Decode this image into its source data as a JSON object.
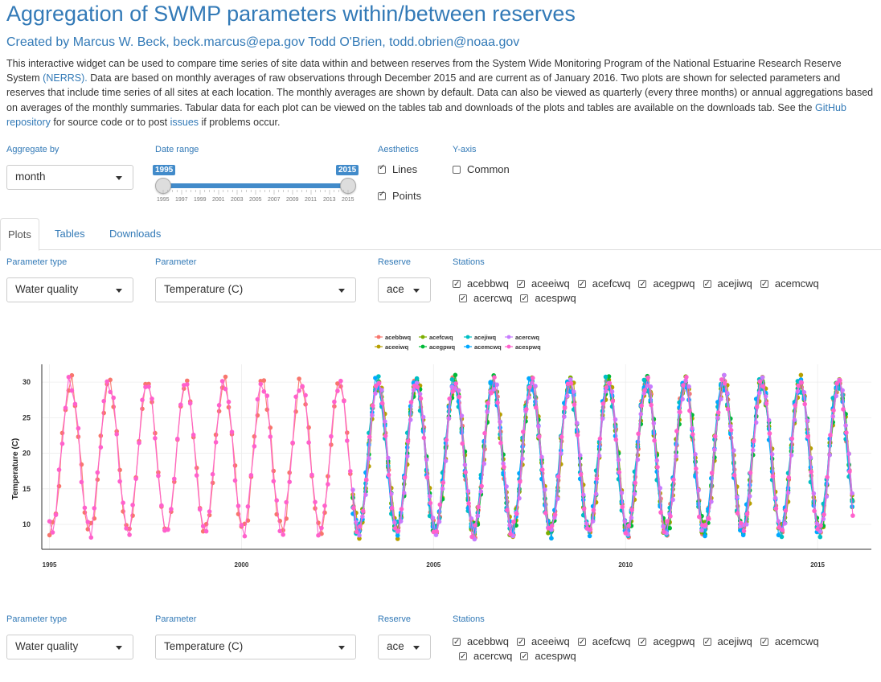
{
  "header": {
    "title": "Aggregation of SWMP parameters within/between reserves",
    "created_by": "Created by Marcus W. Beck,",
    "email1": "beck.marcus@epa.gov",
    "author2": "Todd O'Brien,",
    "email2": "todd.obrien@noaa.gov"
  },
  "intro": {
    "p1": "This interactive widget can be used to compare time series of site data within and between reserves from the System Wide Monitoring Program of the National Estuarine Research Reserve System",
    "nerrs_link": "(NERRS).",
    "p2": "Data are based on monthly averages of raw observations through December 2015 and are current as of January 2016. Two plots are shown for selected parameters and reserves that include time series of all sites at each location. The monthly averages are shown by default. Data can also be viewed as quarterly (every three months) or annual aggregations based on averages of the monthly summaries. Tabular data for each plot can be viewed on the tables tab and downloads of the plots and tables are available on the downloads tab. See the",
    "github_link": "GitHub repository",
    "p3": "for source code or to post",
    "issues_link": "issues",
    "p4": "if problems occur."
  },
  "controls": {
    "aggregate_label": "Aggregate by",
    "aggregate_value": "month",
    "date_label": "Date range",
    "date_start": "1995",
    "date_end": "2015",
    "slider_ticks": [
      "1995",
      "1997",
      "1999",
      "2001",
      "2003",
      "2005",
      "2007",
      "2009",
      "2011",
      "2013",
      "2015"
    ],
    "aesthetics_label": "Aesthetics",
    "lines_label": "Lines",
    "points_label": "Points",
    "yaxis_label": "Y-axis",
    "common_label": "Common"
  },
  "tabs": [
    {
      "label": "Plots"
    },
    {
      "label": "Tables"
    },
    {
      "label": "Downloads"
    }
  ],
  "panel1": {
    "param_type_label": "Parameter type",
    "param_type_value": "Water quality",
    "param_label": "Parameter",
    "param_value": "Temperature (C)",
    "reserve_label": "Reserve",
    "reserve_value": "ace",
    "stations_label": "Stations",
    "stations": [
      "acebbwq",
      "aceeiwq",
      "acefcwq",
      "acegpwq",
      "acejiwq",
      "acemcwq",
      "acercwq",
      "acespwq"
    ]
  },
  "panel2": {
    "param_type_label": "Parameter type",
    "param_type_value": "Water quality",
    "param_label": "Parameter",
    "param_value": "Temperature (C)",
    "reserve_label": "Reserve",
    "reserve_value": "ace",
    "stations_label": "Stations",
    "stations": [
      "acebbwq",
      "aceeiwq",
      "acefcwq",
      "acegpwq",
      "acejiwq",
      "acemcwq",
      "acercwq",
      "acespwq"
    ]
  },
  "chart_data": {
    "type": "line",
    "title": "",
    "xlabel": "",
    "ylabel": "Temperature (C)",
    "xlim": [
      1994.8,
      2016.4
    ],
    "ylim": [
      6.5,
      32.5
    ],
    "x_ticks": [
      1995,
      2000,
      2005,
      2010,
      2015
    ],
    "y_ticks": [
      10,
      15,
      20,
      25,
      30
    ],
    "legend_position": "top",
    "series": [
      {
        "name": "acebbwq",
        "color": "#f8766d",
        "start": 1995.0,
        "end": 2015.95,
        "phase": 0.0
      },
      {
        "name": "aceeiwq",
        "color": "#b79f00",
        "start": 2002.9,
        "end": 2015.95,
        "phase": -0.02
      },
      {
        "name": "acefcwq",
        "color": "#7cae00",
        "start": 2002.9,
        "end": 2015.95,
        "phase": 0.01
      },
      {
        "name": "acegpwq",
        "color": "#00ba38",
        "start": 2002.9,
        "end": 2015.95,
        "phase": -0.01
      },
      {
        "name": "acejiwq",
        "color": "#00bfc4",
        "start": 2002.9,
        "end": 2015.95,
        "phase": 0.02
      },
      {
        "name": "acemcwq",
        "color": "#00a9ff",
        "start": 2002.9,
        "end": 2015.95,
        "phase": 0.015
      },
      {
        "name": "acercwq",
        "color": "#c77cff",
        "start": 2002.9,
        "end": 2015.95,
        "phase": -0.015
      },
      {
        "name": "acespwq",
        "color": "#ff61cc",
        "start": 1995.0,
        "end": 2015.95,
        "phase": 0.005
      }
    ]
  }
}
